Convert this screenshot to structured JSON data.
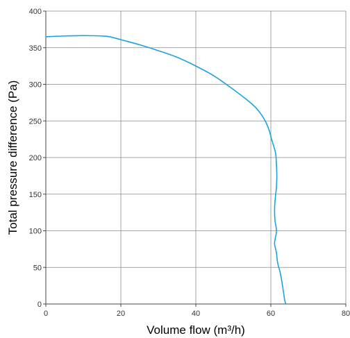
{
  "chart_data": {
    "type": "line",
    "xlabel": "Volume flow (m³/h)",
    "ylabel": "Total pressure difference (Pa)",
    "xlim": [
      0,
      80
    ],
    "ylim": [
      0,
      400
    ],
    "xticks": [
      "0",
      "20",
      "40",
      "60",
      "80"
    ],
    "yticks": [
      "0",
      "50",
      "100",
      "150",
      "200",
      "250",
      "300",
      "350",
      "400"
    ],
    "grid": true,
    "series": [
      {
        "color": "#1aa3dd",
        "x": [
          0,
          5,
          10,
          15,
          17,
          20,
          25,
          30,
          35,
          40,
          45,
          50,
          55,
          57,
          58.5,
          59.5,
          60.2,
          60.8,
          61.3,
          61.5,
          61.6,
          61.5,
          61.2,
          61.0,
          61.1,
          61.5,
          61.2,
          61.0,
          61.5,
          61.7,
          62.0,
          62.4,
          62.8,
          63.2,
          63.5,
          63.7,
          64.0
        ],
        "y": [
          365,
          366,
          366.5,
          366,
          365,
          361,
          354,
          346,
          337,
          325,
          311,
          293,
          273,
          262,
          250,
          238,
          225,
          215,
          205,
          190,
          175,
          160,
          145,
          130,
          115,
          100,
          90,
          82,
          70,
          60,
          52,
          45,
          35,
          22,
          12,
          5,
          0
        ]
      }
    ]
  }
}
